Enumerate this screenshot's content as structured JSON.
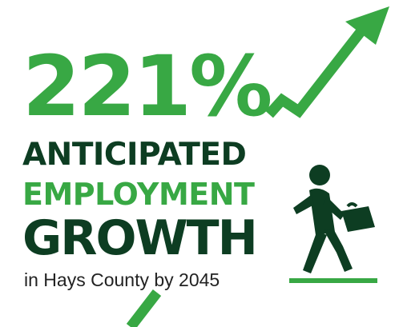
{
  "headline": {
    "percent": "221%",
    "line1": "ANTICIPATED",
    "line2": "EMPLOYMENT",
    "line3": "GROWTH",
    "caption": "in Hays County by 2045"
  },
  "icons": {
    "trend": "trend-arrow-icon",
    "person": "walking-person-with-briefcase-icon"
  },
  "colors": {
    "green": "#38a844",
    "dark_green": "#0d3d22",
    "text": "#222222",
    "background": "#ffffff"
  }
}
